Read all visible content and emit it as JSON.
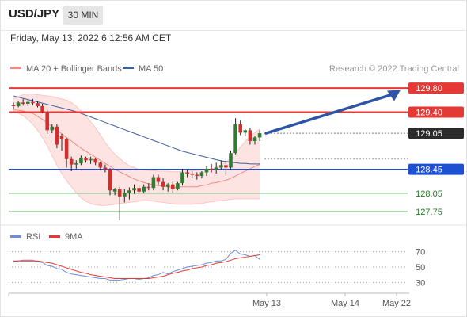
{
  "header": {
    "symbol": "USD/JPY",
    "timeframe": "30 MIN",
    "datetime": "Friday, May 13, 2022 6:12:56 AM CET"
  },
  "legend": {
    "ma20": "MA 20 + Bollinger Bands",
    "ma50": "MA 50",
    "credit": "Research © 2022 Trading Central"
  },
  "colors": {
    "up": "#2e7d32",
    "down": "#d32f2f",
    "ma20": "#f28b82",
    "ma50": "#3f5f9f",
    "bollinger_fill": "#fde4e2",
    "resistance": "#e53935",
    "support_pivot": "#1e50d2",
    "support": "#7cc47c",
    "arrow": "#2d55a3",
    "rsi": "#6d8fd8",
    "rsi_ma": "#e53935"
  },
  "chart_data": [
    {
      "type": "candlestick",
      "series": [
        {
          "name": "USD/JPY",
          "ohlc": [
            [
              129.52,
              129.56,
              129.45,
              129.5
            ],
            [
              129.5,
              129.58,
              129.48,
              129.56
            ],
            [
              129.56,
              129.62,
              129.51,
              129.54
            ],
            [
              129.54,
              129.6,
              129.5,
              129.57
            ],
            [
              129.57,
              129.62,
              129.52,
              129.55
            ],
            [
              129.55,
              129.58,
              129.48,
              129.5
            ],
            [
              129.5,
              129.54,
              129.38,
              129.4
            ],
            [
              129.4,
              129.44,
              129.04,
              129.1
            ],
            [
              129.1,
              129.2,
              129.05,
              129.16
            ],
            [
              129.16,
              129.2,
              128.8,
              128.86
            ],
            [
              129.0,
              129.04,
              128.76,
              128.95
            ],
            [
              128.95,
              128.97,
              128.48,
              128.62
            ],
            [
              128.62,
              128.66,
              128.42,
              128.53
            ],
            [
              128.53,
              128.6,
              128.46,
              128.55
            ],
            [
              128.55,
              128.68,
              128.52,
              128.64
            ],
            [
              128.64,
              128.66,
              128.56,
              128.6
            ],
            [
              128.6,
              128.66,
              128.54,
              128.62
            ],
            [
              128.62,
              128.64,
              128.52,
              128.56
            ],
            [
              128.56,
              128.58,
              128.44,
              128.48
            ],
            [
              128.48,
              128.53,
              128.4,
              128.45
            ],
            [
              128.45,
              128.47,
              128.02,
              128.1
            ],
            [
              128.08,
              128.14,
              128.02,
              128.12
            ],
            [
              128.12,
              128.16,
              127.6,
              128.0
            ],
            [
              128.0,
              128.12,
              127.9,
              128.06
            ],
            [
              128.06,
              128.15,
              127.95,
              128.1
            ],
            [
              128.1,
              128.2,
              128.04,
              128.14
            ],
            [
              128.14,
              128.18,
              128.06,
              128.08
            ],
            [
              128.08,
              128.2,
              128.05,
              128.16
            ],
            [
              128.16,
              128.22,
              128.1,
              128.14
            ],
            [
              128.14,
              128.36,
              128.1,
              128.32
            ],
            [
              128.32,
              128.36,
              128.2,
              128.24
            ],
            [
              128.24,
              128.3,
              128.1,
              128.16
            ],
            [
              128.16,
              128.22,
              128.08,
              128.2
            ],
            [
              128.2,
              128.26,
              128.06,
              128.12
            ],
            [
              128.12,
              128.24,
              128.1,
              128.22
            ],
            [
              128.22,
              128.46,
              128.18,
              128.4
            ],
            [
              128.4,
              128.44,
              128.32,
              128.38
            ],
            [
              128.38,
              128.42,
              128.3,
              128.36
            ],
            [
              128.36,
              128.4,
              128.28,
              128.34
            ],
            [
              128.34,
              128.42,
              128.3,
              128.4
            ],
            [
              128.4,
              128.5,
              128.34,
              128.46
            ],
            [
              128.46,
              128.54,
              128.4,
              128.44
            ],
            [
              128.44,
              128.56,
              128.38,
              128.48
            ],
            [
              128.48,
              128.6,
              128.44,
              128.52
            ],
            [
              128.52,
              128.62,
              128.34,
              128.48
            ],
            [
              128.48,
              128.76,
              128.45,
              128.72
            ],
            [
              128.72,
              129.3,
              128.7,
              129.2
            ],
            [
              129.2,
              129.26,
              129.02,
              129.06
            ],
            [
              129.06,
              129.12,
              129.0,
              129.1
            ],
            [
              129.1,
              129.14,
              128.86,
              128.92
            ],
            [
              128.92,
              129.0,
              128.86,
              128.98
            ],
            [
              128.98,
              129.1,
              128.92,
              129.05
            ]
          ]
        },
        {
          "name": "MA 20",
          "values": [
            129.44,
            129.43,
            129.42,
            129.4,
            129.38,
            129.33,
            129.28,
            129.22,
            129.16,
            129.1,
            129.04,
            128.98,
            128.92,
            128.86,
            128.8,
            128.75,
            128.7,
            128.65,
            128.6,
            128.55,
            128.5,
            128.45,
            128.41,
            128.37,
            128.33,
            128.29,
            128.26,
            128.23,
            128.21,
            128.19,
            128.18,
            128.17,
            128.16,
            128.15,
            128.15,
            128.16,
            128.16,
            128.16,
            128.16,
            128.18,
            128.19,
            128.22,
            128.23,
            128.25,
            128.27,
            128.3,
            128.34,
            128.38,
            128.42,
            128.46,
            128.5,
            128.53
          ]
        },
        {
          "name": "MA 50",
          "values": [
            129.67,
            129.65,
            129.63,
            129.61,
            129.59,
            129.57,
            129.55,
            129.53,
            129.51,
            129.49,
            129.47,
            129.45,
            129.43,
            129.41,
            129.38,
            129.35,
            129.32,
            129.29,
            129.26,
            129.23,
            129.2,
            129.17,
            129.14,
            129.11,
            129.08,
            129.05,
            129.02,
            128.99,
            128.96,
            128.93,
            128.9,
            128.87,
            128.84,
            128.81,
            128.78,
            128.75,
            128.73,
            128.71,
            128.69,
            128.67,
            128.65,
            128.63,
            128.61,
            128.59,
            128.58,
            128.57,
            128.56,
            128.55,
            128.55,
            128.54,
            128.54,
            128.54
          ]
        },
        {
          "name": "Bollinger upper",
          "values": [
            129.62,
            129.66,
            129.69,
            129.7,
            129.7,
            129.69,
            129.68,
            129.67,
            129.66,
            129.64,
            129.62,
            129.6,
            129.56,
            129.5,
            129.42,
            129.34,
            129.24,
            129.14,
            129.02,
            128.9,
            128.79,
            128.7,
            128.63,
            128.56,
            128.51,
            128.48,
            128.45,
            128.44,
            128.43,
            128.43,
            128.42,
            128.42,
            128.42,
            128.41,
            128.41,
            128.42,
            128.42,
            128.43,
            128.43,
            128.44,
            128.44,
            128.46,
            128.48,
            128.52,
            128.57,
            128.63,
            128.72,
            128.82,
            128.91,
            128.99,
            129.06,
            129.12
          ]
        },
        {
          "name": "Bollinger lower",
          "values": [
            129.42,
            129.38,
            129.34,
            129.28,
            129.2,
            129.1,
            128.98,
            128.84,
            128.68,
            128.52,
            128.38,
            128.26,
            128.16,
            128.06,
            127.98,
            127.92,
            127.88,
            127.86,
            127.85,
            127.85,
            127.86,
            127.87,
            127.88,
            127.89,
            127.9,
            127.91,
            127.92,
            127.93,
            127.93,
            127.92,
            127.91,
            127.9,
            127.89,
            127.88,
            127.87,
            127.87,
            127.87,
            127.87,
            127.88,
            127.88,
            127.9,
            127.91,
            127.92,
            127.93,
            127.94,
            127.95,
            127.96,
            127.96,
            127.96,
            127.96,
            127.96,
            127.96
          ]
        }
      ],
      "levels": [
        {
          "value": 129.8,
          "label": "129.80",
          "kind": "resistance"
        },
        {
          "value": 129.4,
          "label": "129.40",
          "kind": "resistance"
        },
        {
          "value": 129.05,
          "label": "129.05",
          "kind": "last"
        },
        {
          "value": 128.45,
          "label": "128.45",
          "kind": "pivot"
        },
        {
          "value": 128.05,
          "label": "128.05",
          "kind": "support"
        },
        {
          "value": 127.75,
          "label": "127.75",
          "kind": "support"
        }
      ],
      "ylim": [
        127.55,
        130.0
      ],
      "grid": false,
      "legend_position": "top"
    },
    {
      "type": "line",
      "series": [
        {
          "name": "RSI",
          "values": [
            57,
            58,
            59,
            59,
            59,
            57,
            56,
            52,
            51,
            48,
            47,
            43,
            41,
            40,
            39,
            38,
            37,
            36,
            35,
            35,
            33,
            33,
            33,
            34,
            35,
            35,
            34,
            35,
            36,
            39,
            40,
            43,
            41,
            44,
            46,
            48,
            50,
            51,
            52,
            53,
            55,
            56,
            58,
            58,
            60,
            68,
            72,
            67,
            66,
            64,
            65,
            60
          ]
        },
        {
          "name": "9MA",
          "values": [
            58,
            58,
            58,
            58,
            58,
            58,
            57,
            56,
            55,
            53,
            51,
            49,
            47,
            45,
            43,
            42,
            40,
            39,
            38,
            37,
            36,
            35,
            35,
            35,
            35,
            35,
            35,
            35,
            35,
            36,
            37,
            38,
            40,
            42,
            43,
            45,
            46,
            48,
            49,
            50,
            52,
            53,
            55,
            56,
            57,
            59,
            61,
            62,
            63,
            64,
            65,
            66
          ]
        }
      ],
      "ylim": [
        20,
        80
      ],
      "ticks": [
        "70",
        "50",
        "30"
      ],
      "x_tick_labels": [
        "May 13",
        "May 14",
        "May 22"
      ],
      "legend_position": "top-left"
    }
  ]
}
